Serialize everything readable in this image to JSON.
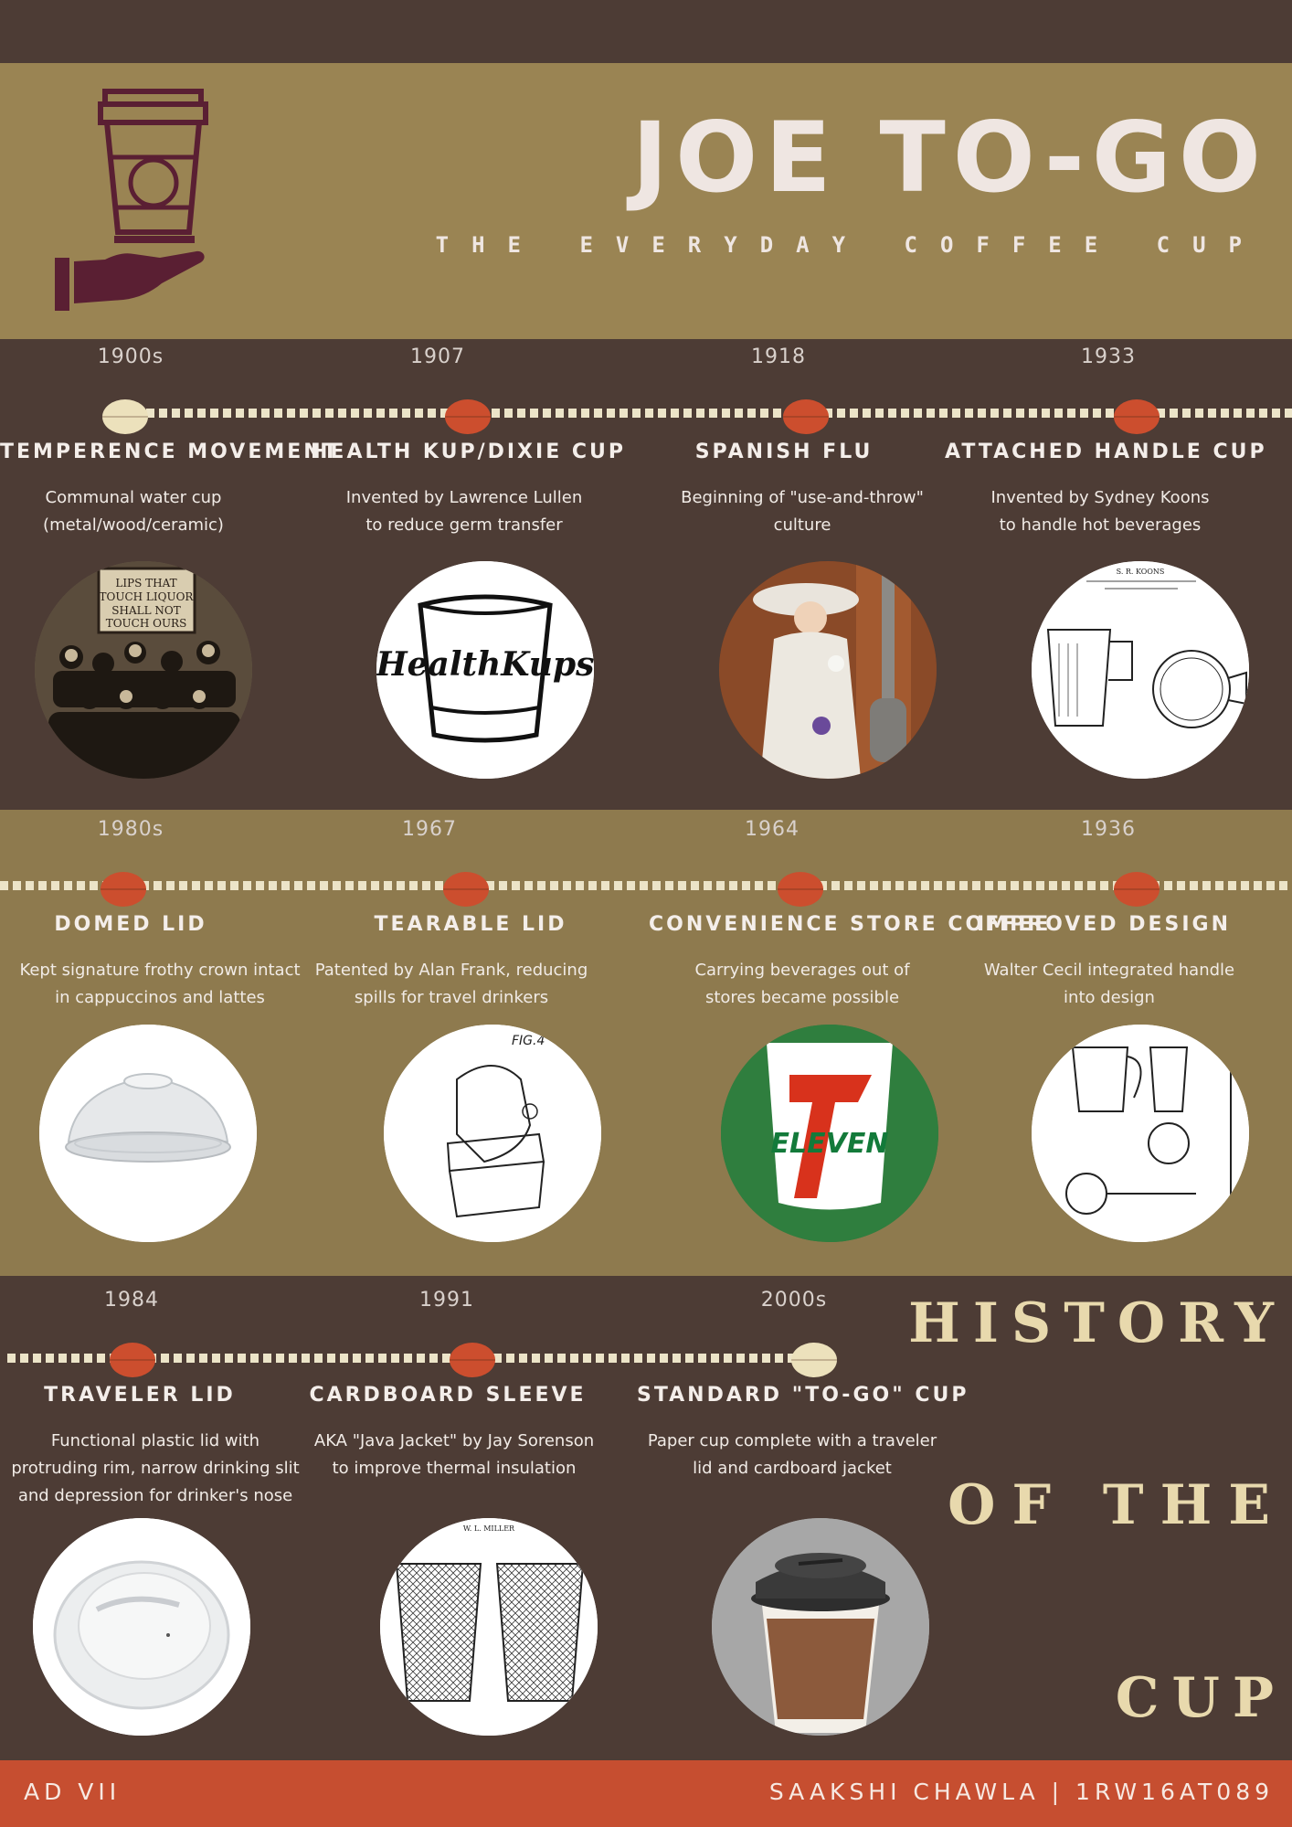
{
  "header": {
    "title": "JOE TO-GO",
    "subtitle": "THE EVERYDAY COFFEE CUP",
    "logo_icon": "cup-in-hand-icon"
  },
  "colors": {
    "dark_brown": "#4d3c35",
    "mustard": "#9a8453",
    "olive_tan": "#8e7a4e",
    "accent_red": "#c64e30",
    "cream": "#ece4c8",
    "logo_plum": "#5a1f33"
  },
  "timeline": [
    {
      "year": "1900s",
      "title": "TEMPERENCE MOVEMENT",
      "description": "Communal water cup\n(metal/wood/ceramic)",
      "marker": "cream",
      "image": "temperance-photo",
      "image_text": "LIPS THAT TOUCH LIQUOR SHALL NOT TOUCH OURS"
    },
    {
      "year": "1907",
      "title": "HEALTH KUP/DIXIE CUP",
      "description": "Invented by Lawrence Lullen\nto reduce germ transfer",
      "marker": "red",
      "image": "healthkups-logo",
      "image_text": "HealthKups"
    },
    {
      "year": "1918",
      "title": "SPANISH FLU",
      "description": "Beginning of \"use-and-throw\"\nculture",
      "marker": "red",
      "image": "spanish-flu-illustration",
      "image_text": ""
    },
    {
      "year": "1933",
      "title": "ATTACHED HANDLE CUP",
      "description": "Invented by Sydney Koons\nto handle hot beverages",
      "marker": "red",
      "image": "handle-cup-patent",
      "image_text": "S. R. KOONS"
    },
    {
      "year": "1980s",
      "title": "DOMED LID",
      "description": "Kept signature frothy crown intact\nin cappuccinos and lattes",
      "marker": "red",
      "image": "domed-lid-photo",
      "image_text": ""
    },
    {
      "year": "1967",
      "title": "TEARABLE LID",
      "description": "Patented by Alan Frank, reducing\nspills for travel drinkers",
      "marker": "red",
      "image": "tearable-lid-patent",
      "image_text": "FIG.4"
    },
    {
      "year": "1964",
      "title": "CONVENIENCE STORE COFFEE",
      "description": "Carrying beverages out of\nstores became possible",
      "marker": "red",
      "image": "seven-eleven-logo",
      "image_text": "ELEVEN"
    },
    {
      "year": "1936",
      "title": "IMPROVED DESIGN",
      "description": "Walter Cecil integrated handle\ninto design",
      "marker": "red",
      "image": "improved-design-patent",
      "image_text": ""
    },
    {
      "year": "1984",
      "title": "TRAVELER LID",
      "description": "Functional plastic lid with\nprotruding rim, narrow drinking slit\nand depression for drinker's nose",
      "marker": "red",
      "image": "traveler-lid-photo",
      "image_text": ""
    },
    {
      "year": "1991",
      "title": "CARDBOARD SLEEVE",
      "description": "AKA \"Java Jacket\" by Jay Sorenson\nto improve thermal insulation",
      "marker": "red",
      "image": "cardboard-sleeve-patent",
      "image_text": "W. L. MILLER"
    },
    {
      "year": "2000s",
      "title": "STANDARD \"TO-GO\" CUP",
      "description": "Paper cup complete with a traveler\nlid and cardboard jacket",
      "marker": "cream",
      "image": "to-go-cup-render",
      "image_text": ""
    }
  ],
  "side_title": {
    "line1": "HISTORY",
    "line2": "OF THE",
    "line3": "CUP"
  },
  "footer": {
    "left": "AD VII",
    "right": "SAAKSHI CHAWLA | 1RW16AT089"
  }
}
